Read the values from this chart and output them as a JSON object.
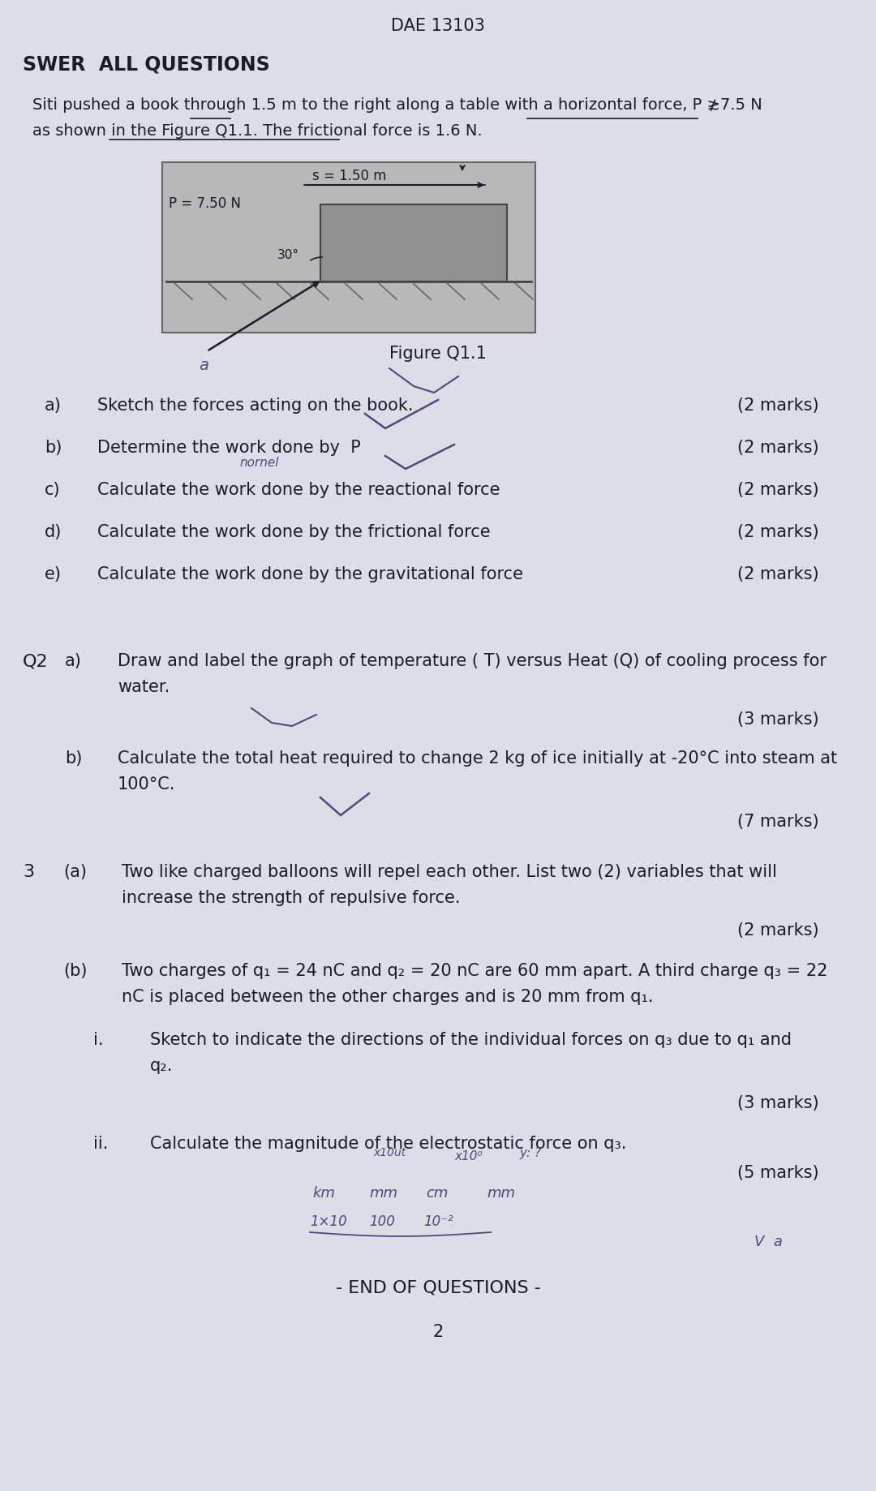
{
  "header": "DAE 13103",
  "section_header": "SWER  ALL QUESTIONS",
  "q1_intro_line1": "Siti pushed a book through 1.5 m to the right along a table with a horizontal force, P ≵7.5 N",
  "q1_intro_line2": "as shown in the Figure Q1.1. The frictional force is 1.6 N.",
  "figure_label": "Figure Q1.1",
  "q1_parts": [
    [
      "a)",
      "Sketch the forces acting on the book.",
      "(2 marks)"
    ],
    [
      "b)",
      "Determine the work done by  P",
      "(2 marks)"
    ],
    [
      "c)",
      "Calculate the work done by the reactional force",
      "(2 marks)"
    ],
    [
      "d)",
      "Calculate the work done by the frictional force",
      "(2 marks)"
    ],
    [
      "e)",
      "Calculate the work done by the gravitational force",
      "(2 marks)"
    ]
  ],
  "q2_label": "Q2",
  "q2a_label": "a)",
  "q2a_line1": "Draw and label the graph of temperature ( T) versus Heat (Q) of cooling process for",
  "q2a_line2": "water.",
  "q2a_marks": "(3 marks)",
  "q2b_label": "b)",
  "q2b_line1": "Calculate the total heat required to change 2 kg of ice initially at -20°C into steam at",
  "q2b_line2": "100°C.",
  "q2b_marks": "(7 marks)",
  "q3_label": "3",
  "q3a_label": "(a)",
  "q3a_line1": "Two like charged balloons will repel each other. List two (2) variables that will",
  "q3a_line2": "increase the strength of repulsive force.",
  "q3a_marks": "(2 marks)",
  "q3b_label": "(b)",
  "q3b_line1": "Two charges of q₁ = 24 nC and q₂ = 20 nC are 60 mm apart. A third charge q₃ = 22",
  "q3b_line2": "nC is placed between the other charges and is 20 mm from q₁.",
  "q3bi_label": "i.",
  "q3bi_line1": "Sketch to indicate the directions of the individual forces on q₃ due to q₁ and",
  "q3bi_line2": "q₂.",
  "q3bi_marks": "(3 marks)",
  "q3bii_label": "ii.",
  "q3bii_text": "Calculate the magnitude of the electrostatic force on q₃.",
  "q3bii_marks": "(5 marks)",
  "footer": "- END OF QUESTIONS -",
  "page_num": "2",
  "bg_color": "#dddde8",
  "text_color": "#1a1a2a",
  "hw_color": "#4a4a7a"
}
